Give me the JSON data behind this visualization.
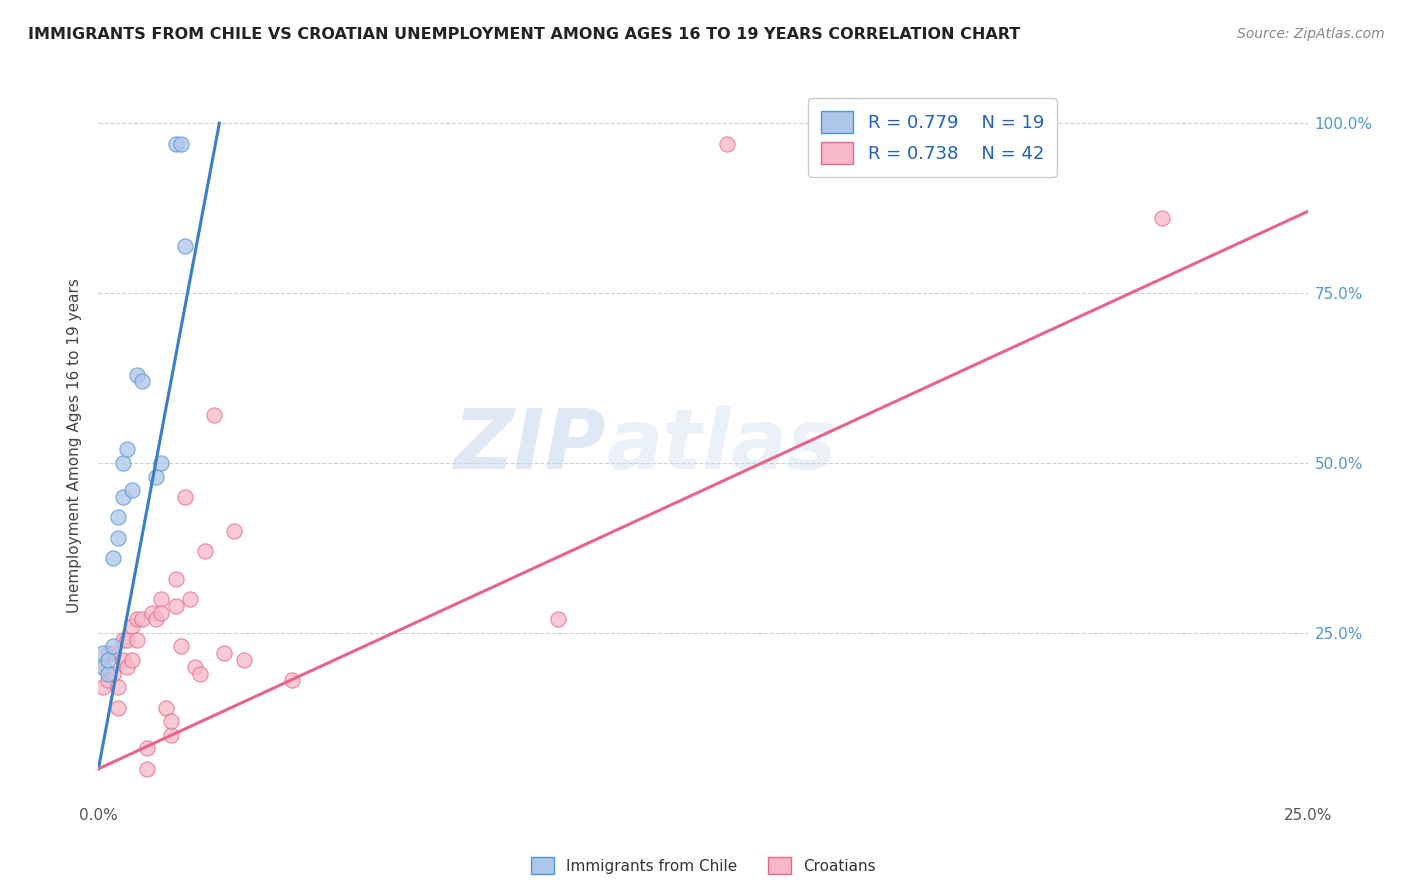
{
  "title": "IMMIGRANTS FROM CHILE VS CROATIAN UNEMPLOYMENT AMONG AGES 16 TO 19 YEARS CORRELATION CHART",
  "source": "Source: ZipAtlas.com",
  "ylabel": "Unemployment Among Ages 16 to 19 years",
  "xmin": 0.0,
  "xmax": 0.25,
  "ymin": 0.0,
  "ymax": 1.05,
  "x_ticks": [
    0.0,
    0.05,
    0.1,
    0.15,
    0.2,
    0.25
  ],
  "y_ticks": [
    0.0,
    0.25,
    0.5,
    0.75,
    1.0
  ],
  "y_tick_labels": [
    "",
    "25.0%",
    "50.0%",
    "75.0%",
    "100.0%"
  ],
  "legend_r1": "R = 0.779",
  "legend_n1": "N = 19",
  "legend_r2": "R = 0.738",
  "legend_n2": "N = 42",
  "color_blue": "#aec6e8",
  "color_pink": "#f7b8c8",
  "edge_blue": "#4d96d4",
  "edge_pink": "#e8648a",
  "line_blue": "#3a7dc9",
  "line_pink": "#e8638a",
  "watermark": "ZIPatlas",
  "blue_scatter_x": [
    0.001,
    0.001,
    0.002,
    0.002,
    0.003,
    0.003,
    0.004,
    0.004,
    0.005,
    0.005,
    0.006,
    0.007,
    0.008,
    0.009,
    0.012,
    0.013,
    0.016,
    0.017,
    0.018
  ],
  "blue_scatter_y": [
    0.2,
    0.22,
    0.19,
    0.21,
    0.23,
    0.36,
    0.39,
    0.42,
    0.45,
    0.5,
    0.52,
    0.46,
    0.63,
    0.62,
    0.48,
    0.5,
    0.97,
    0.97,
    0.82
  ],
  "pink_scatter_x": [
    0.001,
    0.001,
    0.002,
    0.002,
    0.003,
    0.003,
    0.004,
    0.004,
    0.005,
    0.005,
    0.006,
    0.006,
    0.007,
    0.007,
    0.008,
    0.008,
    0.009,
    0.01,
    0.01,
    0.011,
    0.012,
    0.013,
    0.013,
    0.014,
    0.015,
    0.015,
    0.016,
    0.016,
    0.017,
    0.018,
    0.019,
    0.02,
    0.021,
    0.022,
    0.024,
    0.026,
    0.028,
    0.03,
    0.04,
    0.095,
    0.13,
    0.22
  ],
  "pink_scatter_y": [
    0.17,
    0.2,
    0.18,
    0.22,
    0.19,
    0.22,
    0.14,
    0.17,
    0.21,
    0.24,
    0.2,
    0.24,
    0.21,
    0.26,
    0.24,
    0.27,
    0.27,
    0.05,
    0.08,
    0.28,
    0.27,
    0.3,
    0.28,
    0.14,
    0.1,
    0.12,
    0.29,
    0.33,
    0.23,
    0.45,
    0.3,
    0.2,
    0.19,
    0.37,
    0.57,
    0.22,
    0.4,
    0.21,
    0.18,
    0.27,
    0.97,
    0.86
  ],
  "blue_line_x": [
    0.0,
    0.025
  ],
  "blue_line_y": [
    0.05,
    1.0
  ],
  "pink_line_x": [
    0.0,
    0.25
  ],
  "pink_line_y": [
    0.05,
    0.87
  ]
}
